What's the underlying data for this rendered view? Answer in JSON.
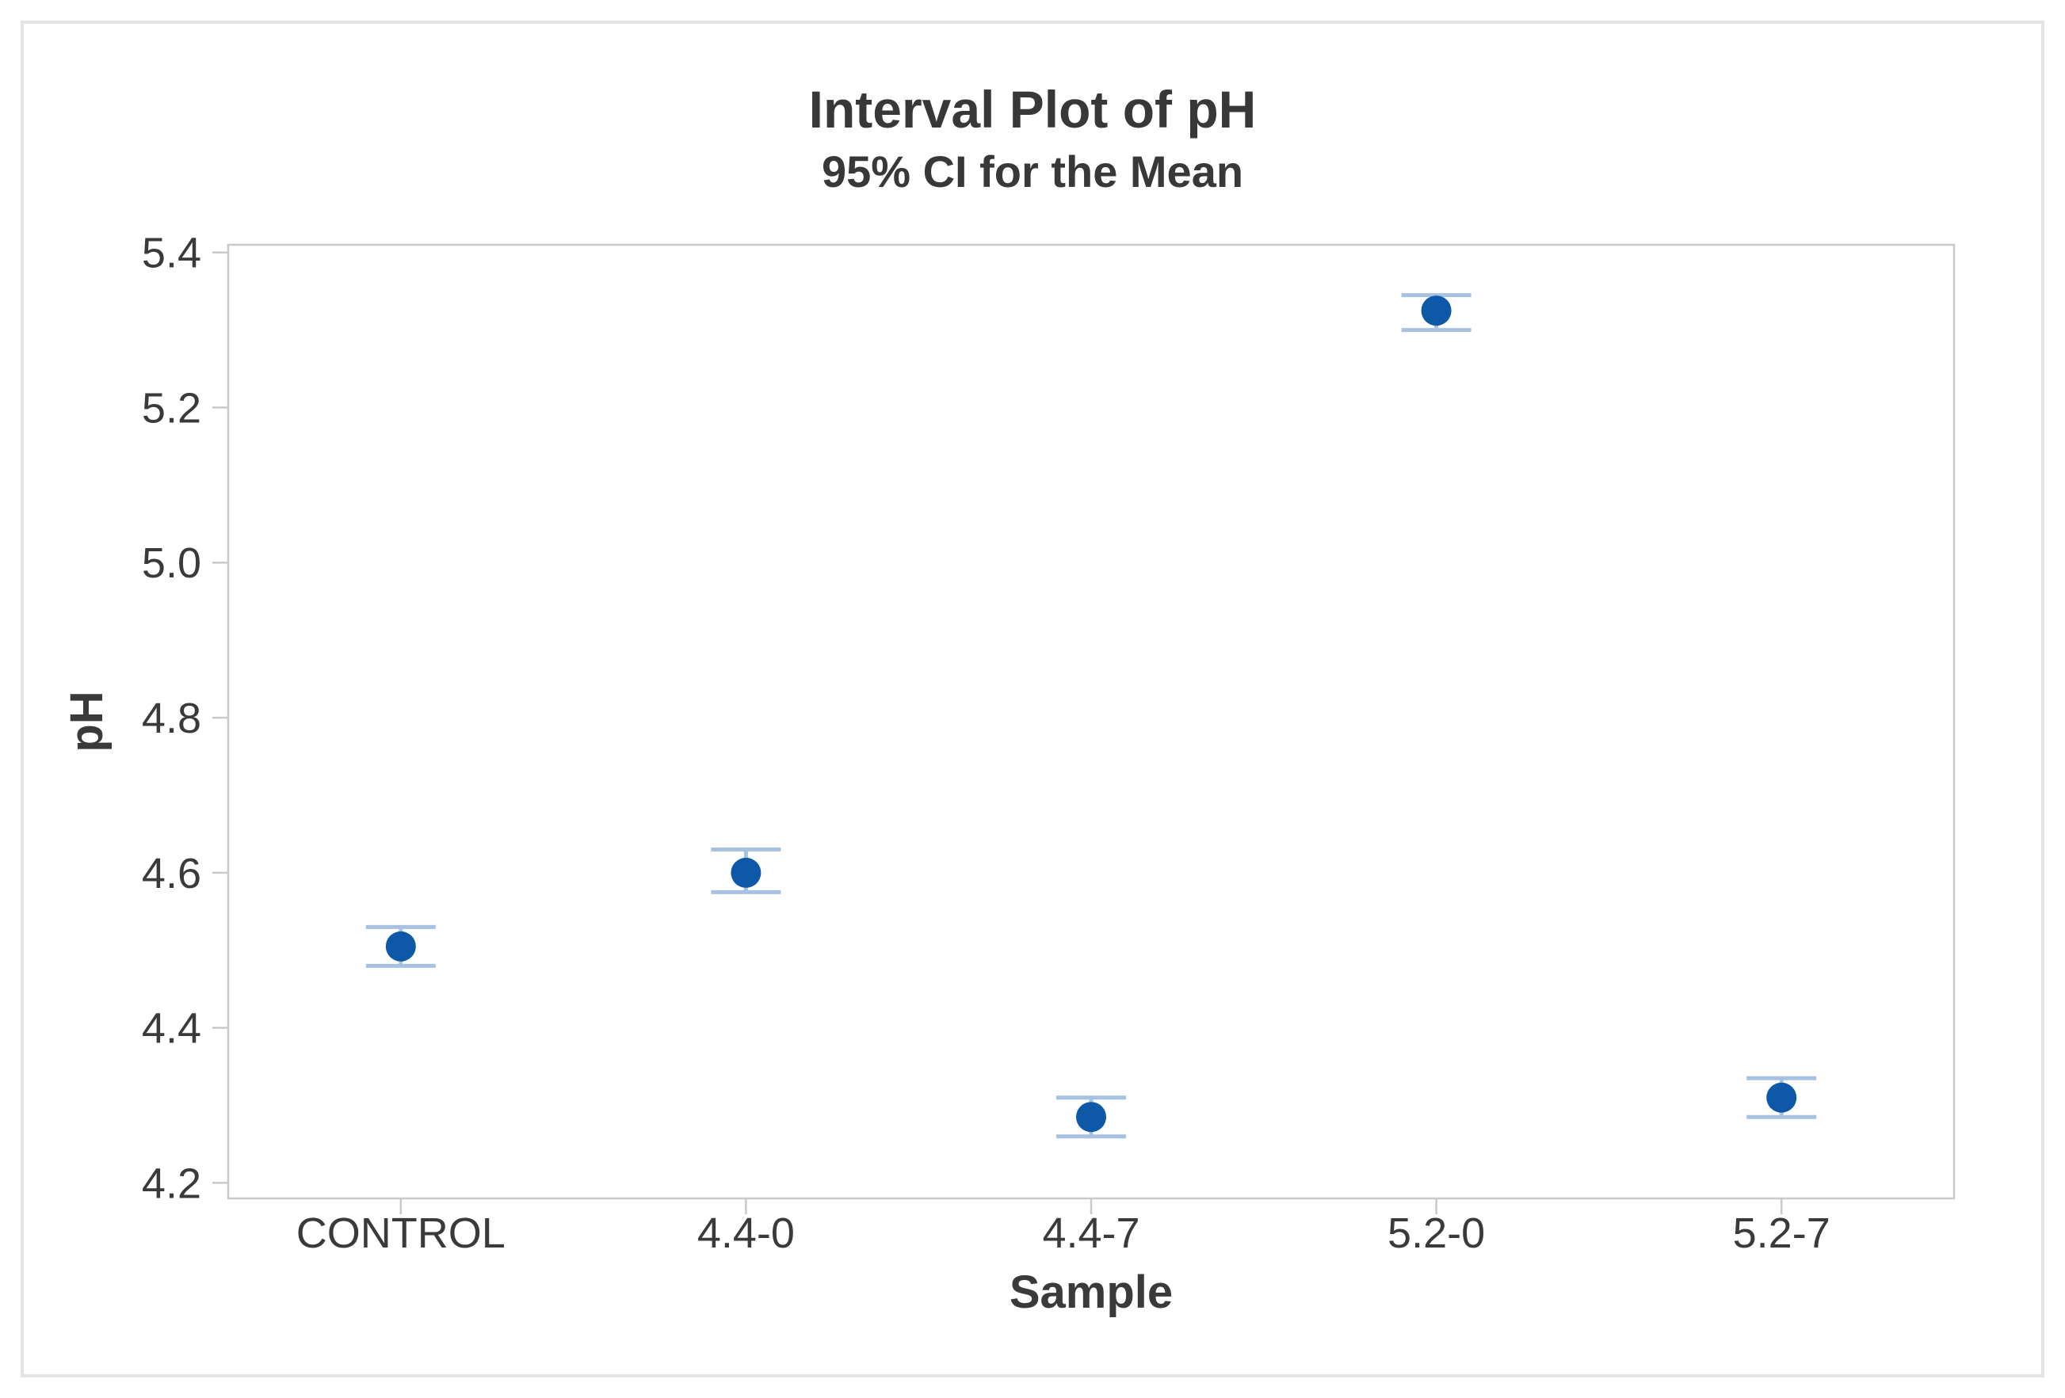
{
  "figure": {
    "background": "#ffffff",
    "border_color": "#e4e4e7"
  },
  "chart_data": {
    "type": "interval",
    "title": "Interval Plot of pH",
    "subtitle": "95% CI for the Mean",
    "xlabel": "Sample",
    "ylabel": "pH",
    "categories": [
      "CONTROL",
      "4.4-0",
      "4.4-7",
      "5.2-0",
      "5.2-7"
    ],
    "series": [
      {
        "name": "Mean",
        "values": [
          4.505,
          4.6,
          4.285,
          5.325,
          4.31
        ]
      },
      {
        "name": "95% CI lower",
        "values": [
          4.48,
          4.575,
          4.26,
          5.3,
          4.285
        ]
      },
      {
        "name": "95% CI upper",
        "values": [
          4.53,
          4.63,
          4.31,
          5.345,
          4.335
        ]
      }
    ],
    "ytick_labels": [
      "4.2",
      "4.4",
      "4.6",
      "4.8",
      "5.0",
      "5.2",
      "5.4"
    ],
    "ylim": [
      4.18,
      5.41
    ],
    "grid": false,
    "legend": "none",
    "ci_level": "95%",
    "colors": {
      "point": "#0d58a7",
      "interval": "#a6c1e2",
      "frame": "#c9c9c9",
      "text": "#3a3a3a"
    }
  }
}
